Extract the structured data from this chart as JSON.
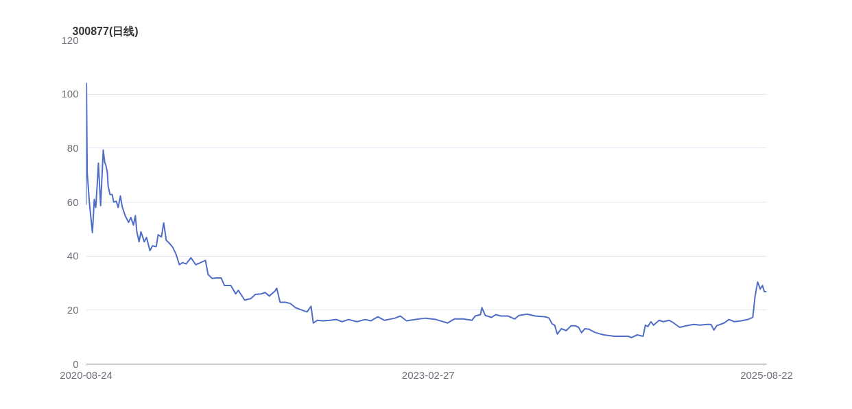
{
  "chart_data": {
    "type": "line",
    "title": "300877(日线)",
    "x": [
      "2020-08-24",
      "2020-08-25",
      "2020-08-27",
      "2020-09-02",
      "2020-09-10",
      "2020-09-15",
      "2020-09-19",
      "2020-09-22",
      "2020-09-26",
      "2020-10-02",
      "2020-10-09",
      "2020-10-13",
      "2020-10-16",
      "2020-10-20",
      "2020-10-22",
      "2020-10-27",
      "2020-11-02",
      "2020-11-06",
      "2020-11-13",
      "2020-11-18",
      "2020-11-24",
      "2020-11-29",
      "2020-12-07",
      "2020-12-16",
      "2020-12-22",
      "2020-12-29",
      "2021-01-03",
      "2021-01-07",
      "2021-01-13",
      "2021-01-18",
      "2021-01-27",
      "2021-02-02",
      "2021-02-11",
      "2021-02-18",
      "2021-02-28",
      "2021-03-05",
      "2021-03-14",
      "2021-03-20",
      "2021-03-27",
      "2021-04-04",
      "2021-04-13",
      "2021-04-22",
      "2021-05-01",
      "2021-05-10",
      "2021-05-19",
      "2021-06-01",
      "2021-06-14",
      "2021-06-27",
      "2021-07-10",
      "2021-07-17",
      "2021-07-28",
      "2021-08-08",
      "2021-08-21",
      "2021-08-30",
      "2021-09-16",
      "2021-09-29",
      "2021-10-06",
      "2021-10-23",
      "2021-11-08",
      "2021-11-21",
      "2021-12-06",
      "2021-12-17",
      "2021-12-28",
      "2022-01-12",
      "2022-01-17",
      "2022-01-26",
      "2022-02-10",
      "2022-02-23",
      "2022-03-08",
      "2022-03-23",
      "2022-04-08",
      "2022-04-19",
      "2022-04-25",
      "2022-05-06",
      "2022-05-20",
      "2022-06-08",
      "2022-06-26",
      "2022-07-11",
      "2022-07-29",
      "2022-08-20",
      "2022-09-11",
      "2022-09-26",
      "2022-10-15",
      "2022-11-02",
      "2022-11-30",
      "2022-12-14",
      "2022-12-31",
      "2023-01-24",
      "2023-02-20",
      "2023-03-20",
      "2023-04-20",
      "2023-05-08",
      "2023-06-01",
      "2023-06-24",
      "2023-07-03",
      "2023-07-17",
      "2023-07-21",
      "2023-07-30",
      "2023-08-16",
      "2023-08-27",
      "2023-09-10",
      "2023-09-29",
      "2023-10-17",
      "2023-10-28",
      "2023-11-19",
      "2023-12-11",
      "2024-01-08",
      "2024-01-17",
      "2024-01-25",
      "2024-02-01",
      "2024-02-08",
      "2024-02-19",
      "2024-03-03",
      "2024-03-16",
      "2024-03-27",
      "2024-04-05",
      "2024-04-13",
      "2024-04-22",
      "2024-05-03",
      "2024-05-18",
      "2024-06-03",
      "2024-06-12",
      "2024-07-10",
      "2024-07-28",
      "2024-08-16",
      "2024-08-25",
      "2024-09-09",
      "2024-09-25",
      "2024-10-01",
      "2024-10-08",
      "2024-10-16",
      "2024-10-23",
      "2024-11-07",
      "2024-11-18",
      "2024-12-04",
      "2024-12-13",
      "2025-01-01",
      "2025-01-19",
      "2025-02-07",
      "2025-02-25",
      "2025-03-15",
      "2025-03-26",
      "2025-04-03",
      "2025-04-10",
      "2025-04-30",
      "2025-05-13",
      "2025-05-28",
      "2025-06-15",
      "2025-07-03",
      "2025-07-16",
      "2025-07-22",
      "2025-07-29",
      "2025-08-05",
      "2025-08-11",
      "2025-08-16",
      "2025-08-22"
    ],
    "series": [
      {
        "color": "#4f6cc6",
        "values": [
          59,
          104,
          71,
          59.5,
          48.7,
          61,
          58,
          64.6,
          74.4,
          58.7,
          79.3,
          74.7,
          73.7,
          71,
          66,
          62.8,
          62.8,
          60,
          60.3,
          58,
          62.3,
          58.2,
          54.9,
          52.5,
          54.3,
          51.5,
          55,
          49,
          45.3,
          49,
          45.3,
          46.9,
          42,
          43.8,
          43.5,
          47.9,
          47.1,
          52.3,
          45.8,
          44.8,
          43.3,
          40.7,
          36.8,
          37.6,
          37.1,
          39.4,
          36.8,
          37.6,
          38.4,
          33.2,
          31.7,
          31.9,
          31.9,
          29.1,
          29.1,
          26,
          27.3,
          23.7,
          24.2,
          25.8,
          26,
          26.5,
          25.2,
          27,
          28.1,
          22.9,
          22.9,
          22.4,
          20.9,
          20.1,
          19.3,
          21.4,
          15.2,
          16.2,
          16,
          16.2,
          16.5,
          15.7,
          16.5,
          15.7,
          16.5,
          16,
          17.5,
          16.2,
          17,
          17.8,
          16,
          16.5,
          17,
          16.5,
          15.2,
          16.7,
          16.7,
          16.2,
          17.8,
          18.3,
          20.9,
          18,
          17.3,
          18.3,
          17.8,
          17.8,
          16.7,
          18,
          18.5,
          17.8,
          17.5,
          17,
          14.9,
          14.4,
          11.1,
          13.1,
          12.4,
          14.2,
          14.2,
          13.6,
          11.6,
          13.1,
          12.9,
          11.8,
          11.1,
          10.8,
          10.3,
          10.3,
          10.3,
          9.8,
          10.8,
          10.3,
          14.4,
          13.9,
          15.7,
          14.4,
          16.2,
          15.7,
          16.2,
          15.5,
          13.6,
          14.2,
          14.7,
          14.4,
          14.7,
          14.7,
          12.6,
          14.2,
          15.2,
          16.5,
          15.7,
          16,
          16.5,
          17.3,
          25,
          30.4,
          27.8,
          29.1,
          26.8,
          26.8
        ]
      }
    ],
    "xlim": [
      "2020-08-24",
      "2025-08-22"
    ],
    "xticks": [
      "2020-08-24",
      "2023-02-27",
      "2025-08-22"
    ],
    "ylim": [
      0,
      120
    ],
    "yticks": [
      0,
      20,
      40,
      60,
      80,
      100,
      120
    ],
    "grid": "y",
    "marker": "none",
    "line_style": "solid"
  }
}
